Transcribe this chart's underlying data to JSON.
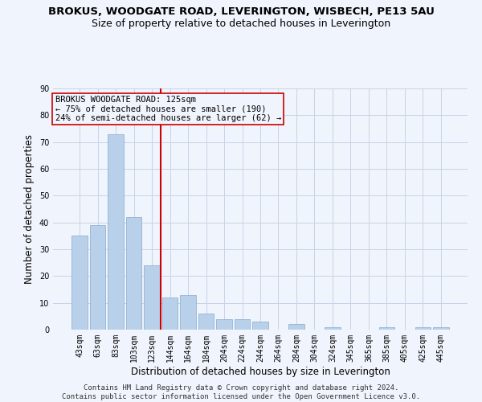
{
  "title": "BROKUS, WOODGATE ROAD, LEVERINGTON, WISBECH, PE13 5AU",
  "subtitle": "Size of property relative to detached houses in Leverington",
  "xlabel": "Distribution of detached houses by size in Leverington",
  "ylabel": "Number of detached properties",
  "categories": [
    "43sqm",
    "63sqm",
    "83sqm",
    "103sqm",
    "123sqm",
    "144sqm",
    "164sqm",
    "184sqm",
    "204sqm",
    "224sqm",
    "244sqm",
    "264sqm",
    "284sqm",
    "304sqm",
    "324sqm",
    "345sqm",
    "365sqm",
    "385sqm",
    "405sqm",
    "425sqm",
    "445sqm"
  ],
  "values": [
    35,
    39,
    73,
    42,
    24,
    12,
    13,
    6,
    4,
    4,
    3,
    0,
    2,
    0,
    1,
    0,
    0,
    1,
    0,
    1,
    1
  ],
  "bar_color": "#b8d0ea",
  "bar_edge_color": "#88aacc",
  "grid_color": "#c8d4e8",
  "background_color": "#f0f4fc",
  "vline_x_idx": 4.5,
  "annotation_line1": "BROKUS WOODGATE ROAD: 125sqm",
  "annotation_line2": "← 75% of detached houses are smaller (190)",
  "annotation_line3": "24% of semi-detached houses are larger (62) →",
  "annotation_box_color": "#cc0000",
  "vline_color": "#cc0000",
  "ylim": [
    0,
    90
  ],
  "yticks": [
    0,
    10,
    20,
    30,
    40,
    50,
    60,
    70,
    80,
    90
  ],
  "footnote1": "Contains HM Land Registry data © Crown copyright and database right 2024.",
  "footnote2": "Contains public sector information licensed under the Open Government Licence v3.0.",
  "title_fontsize": 9.5,
  "subtitle_fontsize": 9,
  "tick_fontsize": 7,
  "ylabel_fontsize": 8.5,
  "xlabel_fontsize": 8.5,
  "annotation_fontsize": 7.5,
  "footnote_fontsize": 6.5
}
